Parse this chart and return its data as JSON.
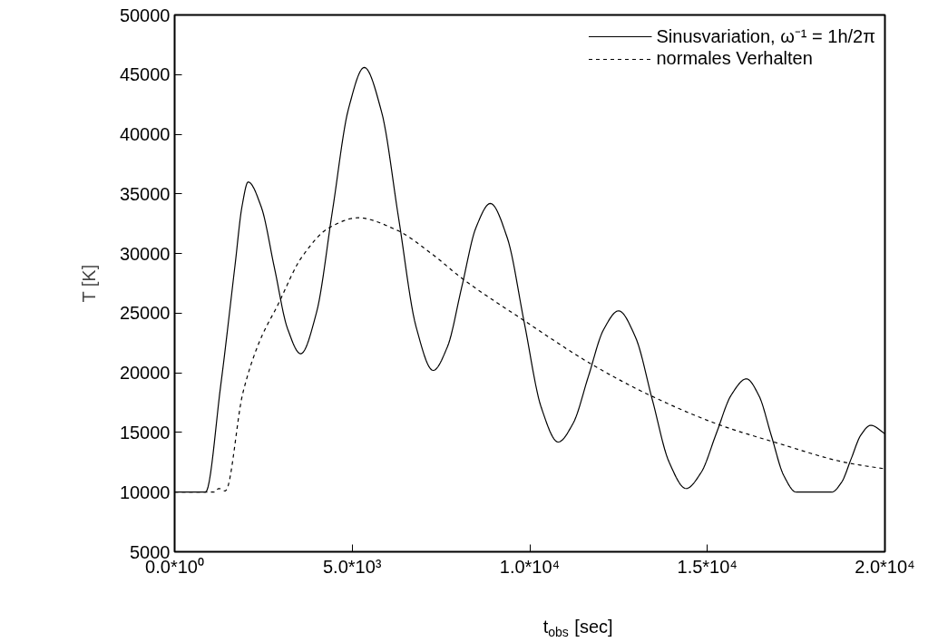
{
  "chart_data": {
    "type": "line",
    "xlabel": "t$_{obs}$ [sec]",
    "ylabel": "T [K]",
    "xlim": [
      0,
      20000
    ],
    "ylim": [
      5000,
      50000
    ],
    "xticks": [
      {
        "value": 0,
        "label": "0.0*10⁰"
      },
      {
        "value": 5000,
        "label": "5.0*10³"
      },
      {
        "value": 10000,
        "label": "1.0*10⁴"
      },
      {
        "value": 15000,
        "label": "1.5*10⁴"
      },
      {
        "value": 20000,
        "label": "2.0*10⁴"
      }
    ],
    "yticks": [
      5000,
      10000,
      15000,
      20000,
      25000,
      30000,
      35000,
      40000,
      45000,
      50000
    ],
    "grid": false,
    "legend": "top right",
    "series": [
      {
        "name": "Sinusvariation, ω⁻¹ = 1h/2π",
        "color": "#000000",
        "line_style": "solid",
        "x": [
          0,
          500,
          870,
          1300,
          1700,
          1900,
          2070,
          2440,
          2810,
          3180,
          3550,
          3998,
          4445,
          4893,
          5340,
          5825,
          6310,
          6795,
          7280,
          7683,
          8085,
          8488,
          8890,
          9368,
          9845,
          10323,
          10800,
          11225,
          11650,
          12075,
          12500,
          12975,
          13450,
          13925,
          14400,
          14825,
          15250,
          15675,
          16100,
          16450,
          16800,
          17150,
          17500,
          18000,
          18500,
          18775,
          19050,
          19325,
          19600,
          20000
        ],
        "values": [
          10000,
          10000,
          10000,
          19000,
          29000,
          34000,
          36000,
          33900,
          28800,
          23700,
          21600,
          25100,
          33600,
          42100,
          45600,
          41900,
          32900,
          23900,
          20200,
          22200,
          27200,
          32200,
          34200,
          31300,
          24200,
          17100,
          14200,
          15800,
          19700,
          23600,
          25200,
          23000,
          17750,
          12500,
          10300,
          11650,
          14900,
          18150,
          19500,
          18100,
          14750,
          11400,
          10000,
          10000,
          10000,
          10800,
          12800,
          14800,
          15600,
          14900
        ]
      },
      {
        "name": "normales Verhalten",
        "color": "#000000",
        "line_style": "dashed",
        "x": [
          0,
          800,
          1100,
          1250,
          1430,
          1920,
          2400,
          2890,
          3580,
          4370,
          5160,
          6230,
          7230,
          8100,
          9780,
          11780,
          13360,
          15330,
          16880,
          18950,
          20000
        ],
        "values": [
          10000,
          10000,
          10000,
          10300,
          10100,
          18300,
          22700,
          25600,
          29700,
          32200,
          33000,
          32000,
          30000,
          27900,
          24500,
          20650,
          18150,
          15650,
          14200,
          12450,
          11950
        ]
      }
    ]
  }
}
